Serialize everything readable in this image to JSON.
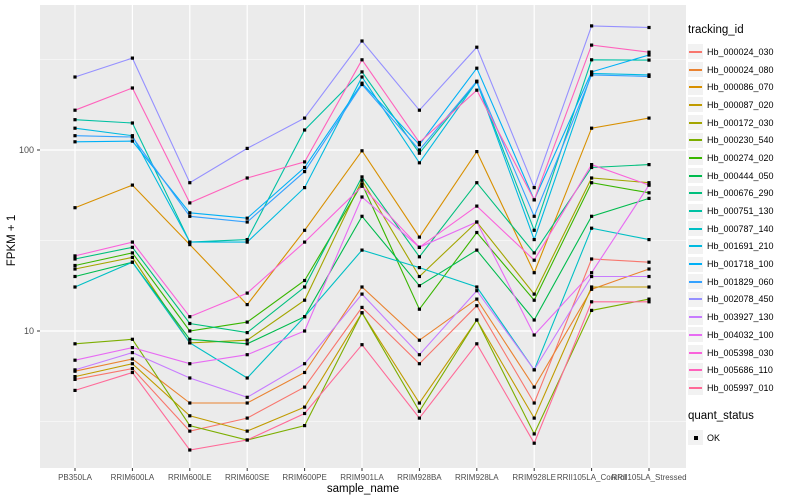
{
  "figure": {
    "type": "ggplot-line-chart",
    "background": "#ffffff",
    "panel_background": "#EBEBEB",
    "grid_color": "#FFFFFF",
    "tick_label_color": "#4D4D4D",
    "point_color": "#000000"
  },
  "legend": {
    "title": "tracking_id",
    "quant_title": "quant_status",
    "quant_items": [
      {
        "label": "OK",
        "marker": "black-square"
      }
    ]
  },
  "axes": {
    "x_title": "sample_name",
    "y_title": "FPKM + 1",
    "y_tick_labels": [
      "100",
      "10"
    ]
  },
  "chart_data": {
    "type": "line",
    "title": "",
    "xlabel": "sample_name",
    "ylabel": "FPKM + 1",
    "y_scale": "log10",
    "ylim": [
      1.8,
      600
    ],
    "grid": true,
    "legend_position": "right",
    "point_marker": "black square (quant_status = OK)",
    "y_major_ticks": [
      100,
      10
    ],
    "y_minor_gridlines": [
      316.2,
      31.62,
      3.162
    ],
    "categories": [
      "PB350LA",
      "RRIM600LA",
      "RRIM600LE",
      "RRIM600SE",
      "RRIM600PE",
      "RRIM901LA",
      "RRIM928BA",
      "RRIM928LA",
      "RRIM928LE",
      "RRII105LA_Control",
      "RRII105LA_Stressed"
    ],
    "series": [
      {
        "name": "Hb_000024_030",
        "color": "#F8766D",
        "values": [
          5.4,
          6.2,
          2.8,
          3.3,
          4.9,
          13.5,
          6.6,
          13.8,
          4.0,
          25,
          24
        ]
      },
      {
        "name": "Hb_000024_080",
        "color": "#EA8331",
        "values": [
          6.0,
          7.0,
          4.0,
          4.0,
          5.9,
          17.5,
          8.9,
          15,
          4.9,
          17,
          22
        ]
      },
      {
        "name": "Hb_000086_070",
        "color": "#D89000",
        "values": [
          48,
          64,
          30,
          14,
          36,
          99,
          33,
          98,
          21,
          132,
          150
        ]
      },
      {
        "name": "Hb_000087_020",
        "color": "#C09B00",
        "values": [
          5.6,
          6.6,
          3.4,
          2.8,
          3.8,
          12.6,
          4.0,
          11.5,
          3.3,
          17.5,
          17.5
        ]
      },
      {
        "name": "Hb_000172_030",
        "color": "#A3A500",
        "values": [
          22,
          25.5,
          8.6,
          8.9,
          14.8,
          68,
          20,
          40,
          16,
          70,
          66
        ]
      },
      {
        "name": "Hb_000230_540",
        "color": "#7CAE00",
        "values": [
          8.5,
          9.0,
          3.0,
          2.5,
          3.0,
          12.6,
          3.6,
          11.5,
          2.7,
          13,
          15
        ]
      },
      {
        "name": "Hb_000274_020",
        "color": "#39B600",
        "values": [
          23,
          27,
          10,
          11.2,
          19,
          65,
          13.2,
          35,
          14.8,
          66,
          58
        ]
      },
      {
        "name": "Hb_000444_050",
        "color": "#00BB4E",
        "values": [
          20,
          24,
          9.0,
          8.5,
          12,
          43,
          17.8,
          28,
          11.5,
          43,
          54
        ]
      },
      {
        "name": "Hb_000676_290",
        "color": "#00BF7D",
        "values": [
          25,
          29,
          11,
          9.8,
          17.5,
          71,
          25.7,
          66,
          27,
          80,
          83
        ]
      },
      {
        "name": "Hb_000751_130",
        "color": "#00C1A3",
        "values": [
          147,
          141,
          31,
          32,
          129,
          270,
          96,
          238,
          36,
          315,
          314
        ]
      },
      {
        "name": "Hb_000787_140",
        "color": "#00BFC4",
        "values": [
          17.5,
          24,
          8.6,
          5.5,
          12,
          28,
          22.4,
          17.5,
          6.1,
          37,
          32
        ]
      },
      {
        "name": "Hb_001691_210",
        "color": "#00BAE0",
        "values": [
          132,
          120,
          31,
          31,
          62,
          253,
          85,
          238,
          32,
          265,
          260
        ]
      },
      {
        "name": "Hb_001718_100",
        "color": "#00B0F6",
        "values": [
          111,
          112,
          45,
          42,
          80,
          234,
          107,
          283,
          53,
          270,
          335
        ]
      },
      {
        "name": "Hb_001829_060",
        "color": "#35A2FF",
        "values": [
          120,
          118,
          43,
          40,
          76,
          230,
          100,
          240,
          43,
          260,
          255
        ]
      },
      {
        "name": "Hb_002078_450",
        "color": "#9590FF",
        "values": [
          253,
          322,
          66,
          102,
          150,
          400,
          166,
          370,
          62,
          485,
          475
        ]
      },
      {
        "name": "Hb_003927_130",
        "color": "#C77CFF",
        "values": [
          6.1,
          7.6,
          5.5,
          4.3,
          6.6,
          16,
          7.4,
          16.7,
          6.1,
          20,
          20
        ]
      },
      {
        "name": "Hb_004032_100",
        "color": "#E76BF3",
        "values": [
          6.9,
          8.1,
          6.6,
          7.4,
          10,
          55,
          29,
          40,
          9.5,
          21,
          64
        ]
      },
      {
        "name": "Hb_005398_030",
        "color": "#FA62DB",
        "values": [
          26,
          31,
          12,
          16.2,
          31,
          63,
          29,
          49,
          24.6,
          83,
          64
        ]
      },
      {
        "name": "Hb_005686_110",
        "color": "#FF62BC",
        "values": [
          166,
          220,
          51,
          70,
          86,
          315,
          110,
          214,
          53,
          380,
          347
        ]
      },
      {
        "name": "Hb_005997_010",
        "color": "#FF6A98",
        "values": [
          4.7,
          5.9,
          2.2,
          2.5,
          3.5,
          8.4,
          3.3,
          8.5,
          2.4,
          14.5,
          14.5
        ]
      }
    ]
  }
}
